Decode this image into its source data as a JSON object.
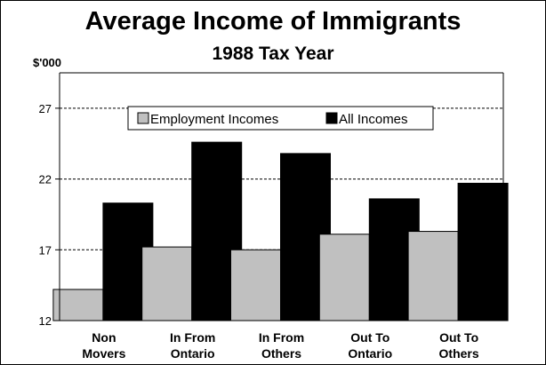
{
  "chart_data": {
    "type": "bar",
    "title": "Average Income of Immigrants",
    "subtitle": "1988 Tax Year",
    "ylabel": "$'000",
    "xlabel": "",
    "categories": [
      [
        "Non",
        "Movers"
      ],
      [
        "In From",
        "Ontario"
      ],
      [
        "In From",
        "Others"
      ],
      [
        "Out To",
        "Ontario"
      ],
      [
        "Out To",
        "Others"
      ]
    ],
    "series": [
      {
        "name": "Employment Incomes",
        "color": "#c0c0c0",
        "values": [
          14.2,
          17.2,
          17.0,
          18.1,
          18.3
        ]
      },
      {
        "name": "All Incomes",
        "color": "#000000",
        "values": [
          20.3,
          24.6,
          23.8,
          20.6,
          21.7
        ]
      }
    ],
    "ylim": [
      12,
      29.5
    ],
    "yticks": [
      12,
      17,
      22,
      27
    ],
    "grid": true,
    "legend_position": "top-center"
  }
}
